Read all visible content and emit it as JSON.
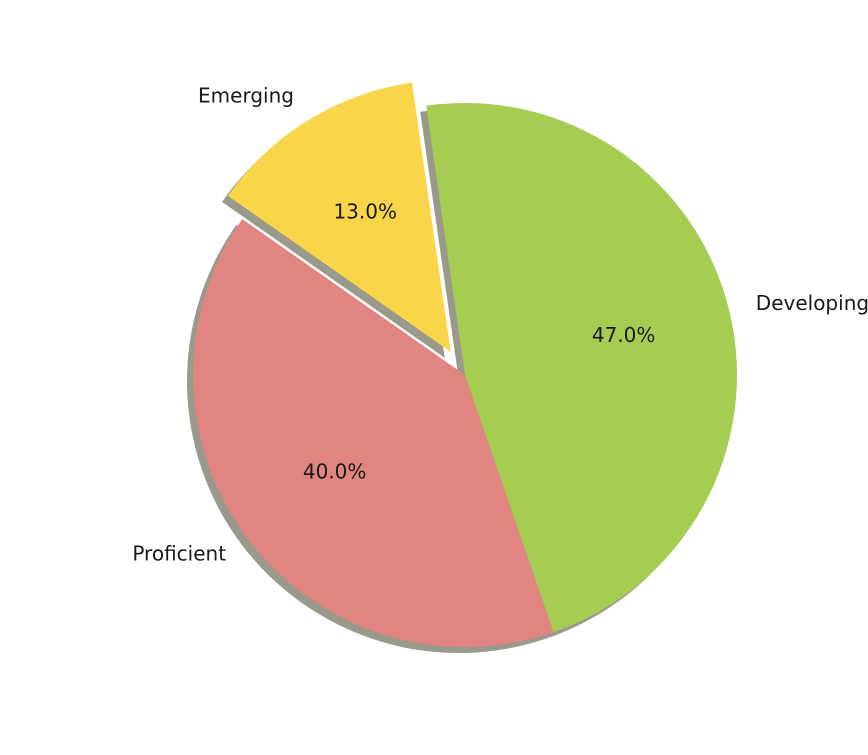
{
  "chart_data": {
    "type": "pie",
    "categories": [
      "Proficient",
      "Developing",
      "Emerging"
    ],
    "values": [
      40.0,
      47.0,
      13.0
    ],
    "percent_labels": [
      "40.0%",
      "47.0%",
      "13.0%"
    ],
    "colors": [
      "#e08582",
      "#a6cc52",
      "#f9d549"
    ],
    "exploded": [
      false,
      false,
      true
    ],
    "shadow": true,
    "shadow_color": "#9a9a8c",
    "start_angle_deg": 145,
    "direction": "counterclockwise"
  }
}
